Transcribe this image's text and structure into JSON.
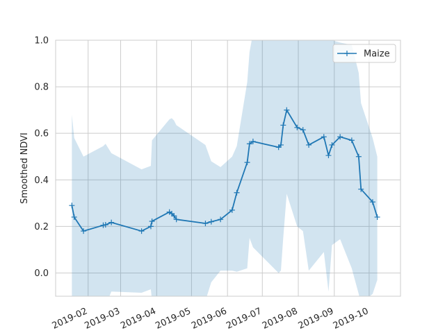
{
  "chart_data": {
    "type": "line",
    "title": "",
    "xlabel": "",
    "ylabel": "Smoothed NDVI",
    "xlim": [
      "2019-01-04",
      "2019-10-28"
    ],
    "ylim": [
      -0.1,
      1.0
    ],
    "grid": true,
    "legend_position": "top-right",
    "x_ticks": [
      "2019-02",
      "2019-03",
      "2019-04",
      "2019-05",
      "2019-06",
      "2019-07",
      "2019-08",
      "2019-09",
      "2019-10"
    ],
    "y_ticks": [
      "0.0",
      "0.2",
      "0.4",
      "0.6",
      "0.8",
      "1.0"
    ],
    "series": [
      {
        "name": "Maize",
        "color": "#1f77b4",
        "marker": "+",
        "x": [
          "2019-01-18",
          "2019-01-20",
          "2019-01-28",
          "2019-02-14",
          "2019-02-16",
          "2019-02-21",
          "2019-03-19",
          "2019-03-27",
          "2019-03-28",
          "2019-04-12",
          "2019-04-14",
          "2019-04-16",
          "2019-04-18",
          "2019-05-13",
          "2019-05-18",
          "2019-05-26",
          "2019-06-05",
          "2019-06-09",
          "2019-06-18",
          "2019-06-20",
          "2019-06-23",
          "2019-07-15",
          "2019-07-17",
          "2019-07-19",
          "2019-07-22",
          "2019-07-31",
          "2019-08-05",
          "2019-08-10",
          "2019-08-23",
          "2019-08-27",
          "2019-08-30",
          "2019-09-06",
          "2019-09-16",
          "2019-09-22",
          "2019-09-24",
          "2019-10-04",
          "2019-10-08"
        ],
        "values": [
          0.29,
          0.24,
          0.18,
          0.205,
          0.207,
          0.217,
          0.18,
          0.2,
          0.222,
          0.262,
          0.255,
          0.245,
          0.23,
          0.213,
          0.22,
          0.23,
          0.27,
          0.345,
          0.475,
          0.555,
          0.565,
          0.54,
          0.55,
          0.635,
          0.7,
          0.625,
          0.615,
          0.55,
          0.585,
          0.505,
          0.55,
          0.585,
          0.57,
          0.5,
          0.36,
          0.305,
          0.24
        ]
      }
    ],
    "band": {
      "color": "#1f77b4",
      "x": [
        "2019-01-18",
        "2019-01-20",
        "2019-01-28",
        "2019-02-14",
        "2019-02-16",
        "2019-02-21",
        "2019-03-19",
        "2019-03-27",
        "2019-03-28",
        "2019-04-12",
        "2019-04-14",
        "2019-04-16",
        "2019-04-18",
        "2019-05-13",
        "2019-05-18",
        "2019-05-26",
        "2019-06-05",
        "2019-06-09",
        "2019-06-18",
        "2019-06-20",
        "2019-06-23",
        "2019-07-15",
        "2019-07-17",
        "2019-07-19",
        "2019-07-22",
        "2019-07-31",
        "2019-08-05",
        "2019-08-10",
        "2019-08-23",
        "2019-08-27",
        "2019-08-30",
        "2019-09-06",
        "2019-09-16",
        "2019-09-22",
        "2019-09-24",
        "2019-10-04",
        "2019-10-08"
      ],
      "upper": [
        0.68,
        0.58,
        0.5,
        0.545,
        0.555,
        0.515,
        0.445,
        0.46,
        0.57,
        0.66,
        0.665,
        0.655,
        0.635,
        0.55,
        0.48,
        0.455,
        0.5,
        0.545,
        0.82,
        0.95,
        1.03,
        1.2,
        1.2,
        1.2,
        1.2,
        1.2,
        1.2,
        1.2,
        1.2,
        1.2,
        1.0,
        0.99,
        0.98,
        0.86,
        0.73,
        0.58,
        0.5
      ],
      "lower": [
        -0.13,
        -0.12,
        -0.14,
        -0.14,
        -0.14,
        -0.08,
        -0.085,
        -0.07,
        -0.12,
        -0.15,
        -0.15,
        -0.16,
        -0.17,
        -0.12,
        -0.04,
        0.01,
        0.01,
        0.005,
        0.02,
        0.15,
        0.11,
        0.0,
        0.01,
        0.15,
        0.34,
        0.2,
        0.18,
        0.01,
        0.09,
        -0.08,
        0.12,
        0.145,
        0.02,
        -0.09,
        -0.13,
        -0.09,
        -0.03
      ]
    }
  }
}
